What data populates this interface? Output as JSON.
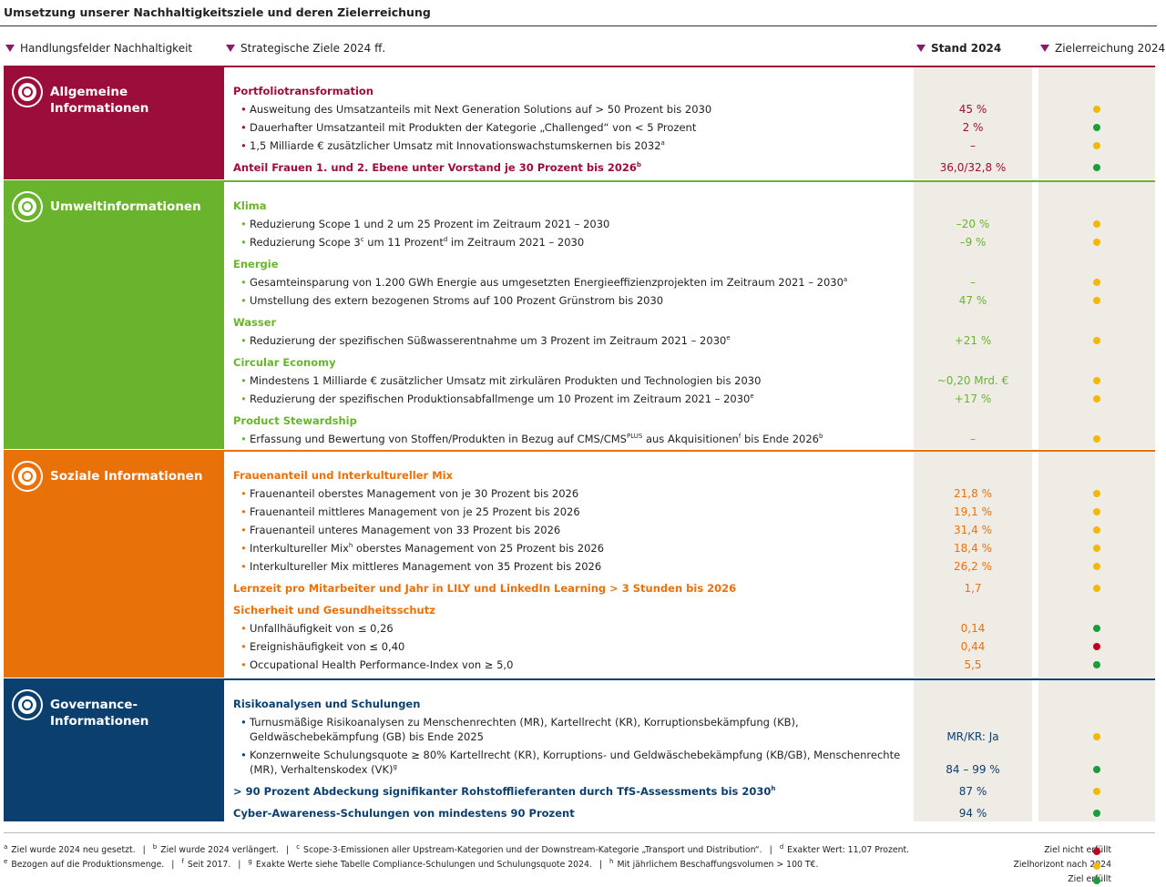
{
  "title": "Umsetzung unserer Nachhaltigkeitsziele und deren Zielerreichung",
  "headers": [
    "Handlungsfelder Nachhaltigkeit",
    "Strategische Ziele 2024 ff.",
    "Stand 2024",
    "Zielerreichung 2024"
  ],
  "sections": [
    {
      "name": [
        "Allgemeine",
        "Informationen"
      ],
      "color": "#9b0d3a",
      "groups": [
        {
          "title": [
            "Portfoliotransformation"
          ],
          "items": [
            {
              "text": [
                "Ausweitung des Umsatzanteils mit Next Generation Solutions auf > 50 Prozent bis 2030"
              ],
              "value": "45 %",
              "status": "#f5b800"
            },
            {
              "text": [
                "Dauerhafter Umsatzanteil mit Produkten der Kategorie „Challenged“ von < 5 Prozent"
              ],
              "value": "2 %",
              "status": "#1a9e3a"
            },
            {
              "text": [
                "1,5 Milliarde € zusätzlicher Umsatz mit Innovationswachstumskernen bis 2032",
                {
                  "sup": "a"
                }
              ],
              "value": "–",
              "status": "#f5b800"
            }
          ]
        },
        {
          "title": [
            "Anteil Frauen 1. und 2. Ebene unter Vorstand je 30 Prozent bis 2026",
            {
              "sup": "b"
            }
          ],
          "value": "36,0/32,8 %",
          "status": "#1a9e3a"
        }
      ]
    },
    {
      "name": [
        "Umweltinformationen"
      ],
      "color": "#6ab42d",
      "groups": [
        {
          "title": [
            "Klima"
          ],
          "items": [
            {
              "text": [
                "Reduzierung Scope 1 und 2 um 25 Prozent im Zeitraum 2021 – 2030"
              ],
              "value": "–20 %",
              "status": "#f5b800"
            },
            {
              "text": [
                "Reduzierung Scope 3",
                {
                  "sup": "c"
                },
                " um 11 Prozent",
                {
                  "sup": "d"
                },
                " im Zeitraum 2021 – 2030"
              ],
              "value": "–9 %",
              "status": "#f5b800"
            }
          ]
        },
        {
          "title": [
            "Energie"
          ],
          "items": [
            {
              "text": [
                "Gesamteinsparung von 1.200 GWh Energie aus umgesetzten Energieeffizienzprojekten im Zeitraum 2021 – 2030",
                {
                  "sup": "a"
                }
              ],
              "value": "–",
              "status": "#f5b800"
            },
            {
              "text": [
                "Umstellung des extern bezogenen Stroms auf 100 Prozent Grünstrom bis 2030"
              ],
              "value": "47 %",
              "status": "#f5b800"
            }
          ]
        },
        {
          "title": [
            "Wasser"
          ],
          "items": [
            {
              "text": [
                "Reduzierung der spezifischen Süßwasserentnahme um 3 Prozent im Zeitraum 2021 – 2030",
                {
                  "sup": "e"
                }
              ],
              "value": "+21 %",
              "status": "#f5b800"
            }
          ]
        },
        {
          "title": [
            "Circular Economy"
          ],
          "items": [
            {
              "text": [
                "Mindestens 1 Milliarde € zusätzlicher Umsatz mit zirkulären Produkten und Technologien bis 2030"
              ],
              "value": "~0,20 Mrd. €",
              "status": "#f5b800"
            },
            {
              "text": [
                "Reduzierung der spezifischen Produktionsabfallmenge um 10 Prozent im Zeitraum 2021 – 2030",
                {
                  "sup": "e"
                }
              ],
              "value": "+17 %",
              "status": "#f5b800"
            }
          ]
        },
        {
          "title": [
            "Product Stewardship"
          ],
          "items": [
            {
              "text": [
                "Erfassung und Bewertung von Stoffen/Produkten in Bezug auf CMS/CMS",
                {
                  "sup": "PLUS"
                },
                " aus Akquisitionen",
                {
                  "sup": "f"
                },
                " bis Ende 2026",
                {
                  "sup": "b"
                }
              ],
              "value": "–",
              "status": "#f5b800"
            }
          ]
        }
      ]
    },
    {
      "name": [
        "Soziale Informationen"
      ],
      "color": "#e8710a",
      "groups": [
        {
          "title": [
            "Frauenanteil und Interkultureller Mix"
          ],
          "items": [
            {
              "text": [
                "Frauenanteil oberstes Management von je 30 Prozent bis 2026"
              ],
              "value": "21,8 %",
              "status": "#f5b800"
            },
            {
              "text": [
                "Frauenanteil mittleres Management von je 25 Prozent bis 2026"
              ],
              "value": "19,1 %",
              "status": "#f5b800"
            },
            {
              "text": [
                "Frauenanteil unteres Management von 33 Prozent bis 2026"
              ],
              "value": "31,4 %",
              "status": "#f5b800"
            },
            {
              "text": [
                "Interkultureller Mix",
                {
                  "sup": "h"
                },
                " oberstes Management von 25 Prozent bis 2026"
              ],
              "value": "18,4 %",
              "status": "#f5b800"
            },
            {
              "text": [
                "Interkultureller Mix mittleres Management von 35 Prozent bis 2026"
              ],
              "value": "26,2 %",
              "status": "#f5b800"
            }
          ]
        },
        {
          "title": [
            "Lernzeit pro Mitarbeiter und Jahr in LILY und LinkedIn Learning > 3 Stunden bis 2026"
          ],
          "value": "1,7",
          "status": "#f5b800"
        },
        {
          "title": [
            "Sicherheit und Gesundheitsschutz"
          ],
          "items": [
            {
              "text": [
                "Unfallhäufigkeit von ≤ 0,26"
              ],
              "value": "0,14",
              "status": "#1a9e3a"
            },
            {
              "text": [
                "Ereignishäufigkeit von ≤ 0,40"
              ],
              "value": "0,44",
              "status": "#c0001a"
            },
            {
              "text": [
                "Occupational Health Performance-Index von ≥ 5,0"
              ],
              "value": "5,5",
              "status": "#1a9e3a"
            }
          ]
        }
      ]
    },
    {
      "name": [
        "Governance-",
        "Informationen"
      ],
      "color": "#0b3f6e",
      "groups": [
        {
          "title": [
            "Risikoanalysen und Schulungen"
          ],
          "items": [
            {
              "text": [
                "Turnusmäßige Risikoanalysen zu Menschenrechten (MR), Kartellrecht (KR), Korruptionsbekämpfung (KB), Geldwäschebekämpfung (GB) bis Ende 2025"
              ],
              "value": "MR/KR: Ja",
              "status": "#f5b800"
            },
            {
              "text": [
                "Konzernweite Schulungsquote ≥ 80% Kartellrecht (KR), Korruptions- und Geldwäschebekämpfung (KB/GB), Menschenrechte (MR), Verhaltenskodex (VK)",
                {
                  "sup": "g"
                }
              ],
              "value": "84 – 99 %",
              "status": "#1a9e3a"
            }
          ]
        },
        {
          "title": [
            "> 90 Prozent Abdeckung signifikanter Rohstofflieferanten durch TfS-Assessments bis 2030",
            {
              "sup": "h"
            }
          ],
          "value": "87 %",
          "status": "#f5b800"
        },
        {
          "title": [
            "Cyber-Awareness-Schulungen von mindestens 90 Prozent"
          ],
          "value": "94 %",
          "status": "#1a9e3a"
        }
      ]
    }
  ],
  "footnotes": [
    [
      {
        "mark": "a",
        "text": "Ziel wurde 2024 neu gesetzt."
      },
      {
        "mark": "b",
        "text": "Ziel wurde 2024 verlängert."
      },
      {
        "mark": "c",
        "text": "Scope-3-Emissionen aller Upstream-Kategorien und der Downstream-Kategorie „Transport und Distribution“."
      },
      {
        "mark": "d",
        "text": "Exakter Wert: 11,07 Prozent."
      }
    ],
    [
      {
        "mark": "e",
        "text": "Bezogen auf die Produktionsmenge."
      },
      {
        "mark": "f",
        "text": "Seit 2017."
      },
      {
        "mark": "g",
        "text": "Exakte Werte siehe Tabelle Compliance-Schulungen und Schulungsquote 2024."
      },
      {
        "mark": "h",
        "text": "Mit jährlichem Beschaffungsvolumen > 100 T€."
      }
    ]
  ],
  "legend": [
    {
      "label": "Ziel nicht erfüllt",
      "color": "#c0001a"
    },
    {
      "label": "Zielhorizont nach 2024",
      "color": "#f5b800"
    },
    {
      "label": "Ziel erfüllt",
      "color": "#1a9e3a"
    }
  ]
}
